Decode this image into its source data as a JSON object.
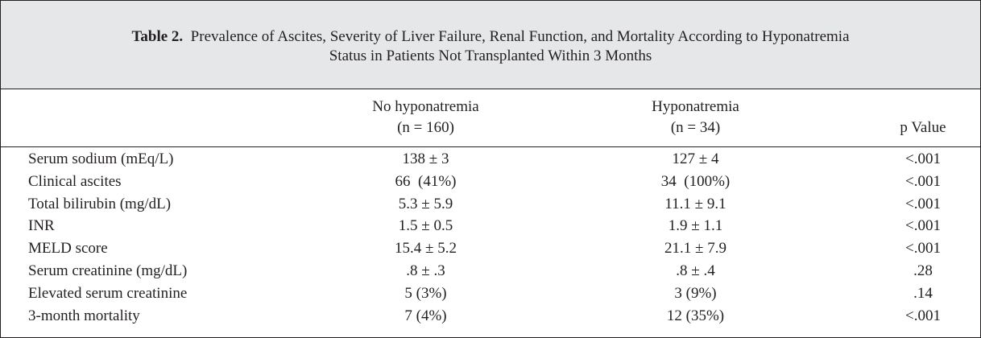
{
  "caption": {
    "label": "Table 2.",
    "line1": "Prevalence of Ascites, Severity of Liver Failure, Renal Function, and Mortality According to Hyponatremia",
    "line2": "Status in Patients Not Transplanted Within 3 Months"
  },
  "columns": {
    "no_hyponatremia": {
      "title": "No hyponatremia",
      "n": "(n = 160)"
    },
    "hyponatremia": {
      "title": "Hyponatremia",
      "n": "(n = 34)"
    },
    "p_value": {
      "title": "p Value"
    }
  },
  "rows": [
    {
      "label": "Serum sodium (mEq/L)",
      "no_hyponatremia": "138 ± 3",
      "hyponatremia": "127 ± 4",
      "p_value": "<.001"
    },
    {
      "label": "Clinical ascites",
      "no_hyponatremia": "66  (41%)",
      "hyponatremia": "34  (100%)",
      "p_value": "<.001"
    },
    {
      "label": "Total bilirubin (mg/dL)",
      "no_hyponatremia": "5.3 ± 5.9",
      "hyponatremia": "11.1 ± 9.1",
      "p_value": "<.001"
    },
    {
      "label": "INR",
      "no_hyponatremia": "1.5 ± 0.5",
      "hyponatremia": "1.9 ± 1.1",
      "p_value": "<.001"
    },
    {
      "label": "MELD score",
      "no_hyponatremia": "15.4 ± 5.2",
      "hyponatremia": "21.1 ± 7.9",
      "p_value": "<.001"
    },
    {
      "label": "Serum creatinine (mg/dL)",
      "no_hyponatremia": ".8 ± .3",
      "hyponatremia": ".8 ± .4",
      "p_value": ".28"
    },
    {
      "label": "Elevated serum creatinine",
      "no_hyponatremia": "5 (3%)",
      "hyponatremia": "3 (9%)",
      "p_value": ".14"
    },
    {
      "label": "3-month mortality",
      "no_hyponatremia": "7 (4%)",
      "hyponatremia": "12 (35%)",
      "p_value": "<.001"
    }
  ]
}
